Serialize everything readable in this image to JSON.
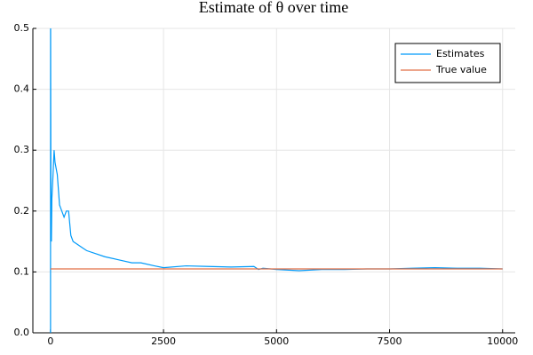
{
  "chart_data": {
    "type": "line",
    "title": "Estimate of θ over time",
    "xlim": [
      -390,
      10280
    ],
    "ylim": [
      0,
      0.5
    ],
    "xticks": [
      0,
      2500,
      5000,
      7500,
      10000
    ],
    "yticks": [
      {
        "value": 0,
        "label": "0.0"
      },
      0.1,
      0.2,
      0.3,
      0.4,
      0.5
    ],
    "grid": true,
    "legend": "top-right",
    "series": [
      {
        "name": "Estimates",
        "color": "#009af9",
        "x": [
          1,
          2,
          3,
          5,
          10,
          20,
          30,
          50,
          80,
          100,
          150,
          200,
          250,
          300,
          350,
          400,
          450,
          500,
          600,
          700,
          800,
          1000,
          1200,
          1500,
          1800,
          2000,
          2300,
          2500,
          3000,
          3500,
          4000,
          4500,
          4600,
          4700,
          5000,
          5500,
          6000,
          6500,
          7000,
          7500,
          8000,
          8500,
          9000,
          9500,
          10000
        ],
        "values": [
          0,
          1,
          0.5,
          0.4,
          0.2,
          0.15,
          0.22,
          0.25,
          0.3,
          0.28,
          0.26,
          0.21,
          0.2,
          0.19,
          0.2,
          0.2,
          0.16,
          0.15,
          0.145,
          0.14,
          0.135,
          0.13,
          0.125,
          0.12,
          0.115,
          0.115,
          0.11,
          0.107,
          0.11,
          0.109,
          0.108,
          0.109,
          0.104,
          0.106,
          0.104,
          0.102,
          0.104,
          0.104,
          0.105,
          0.105,
          0.106,
          0.107,
          0.106,
          0.106,
          0.105
        ]
      },
      {
        "name": "True value",
        "color": "#e26f46",
        "x": [
          1,
          10000
        ],
        "values": [
          0.105,
          0.105
        ]
      }
    ]
  }
}
